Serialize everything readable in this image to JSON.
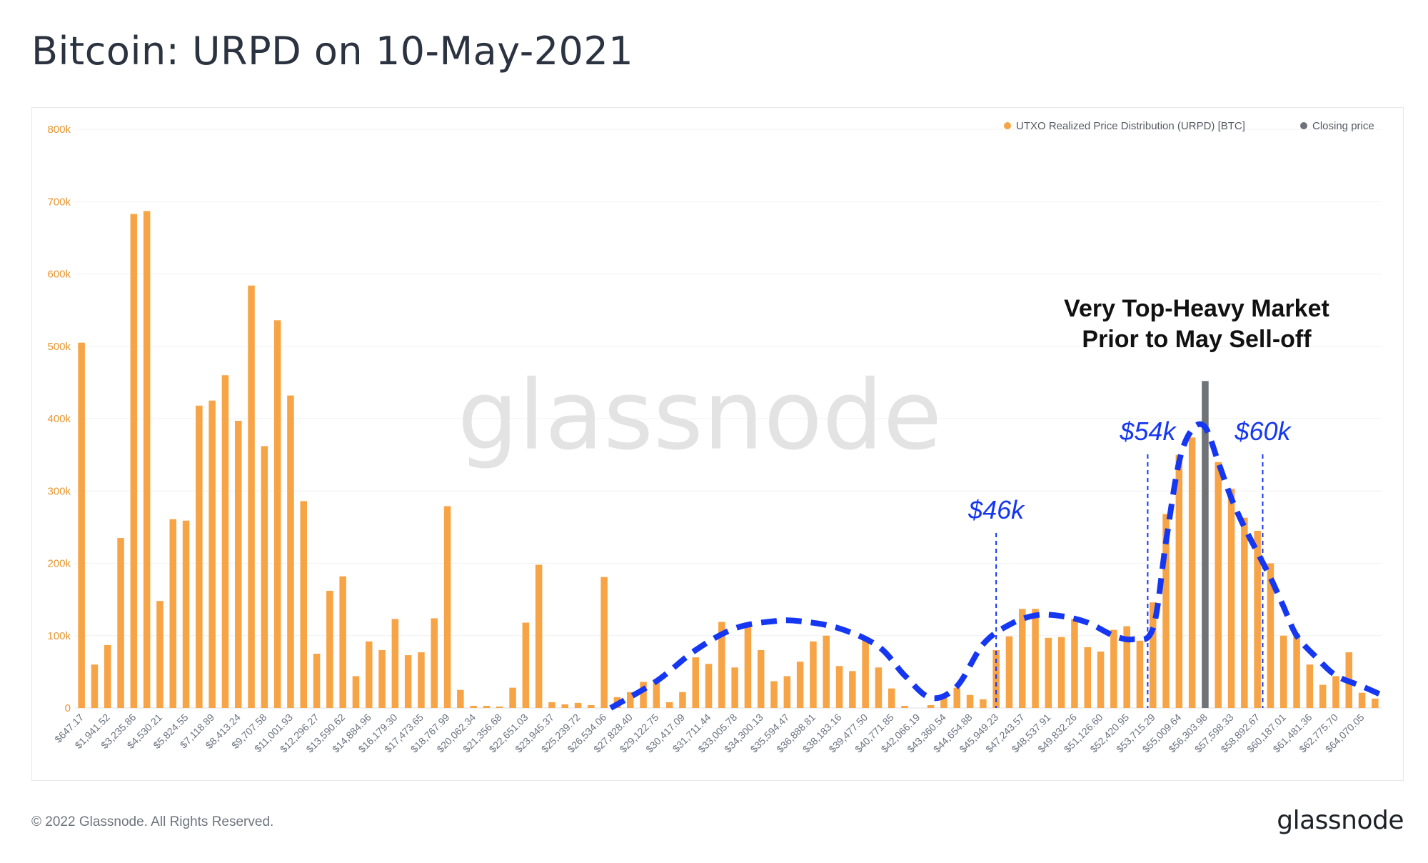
{
  "title": "Bitcoin: URPD on 10-May-2021",
  "footer": {
    "copyright": "© 2022 Glassnode. All Rights Reserved.",
    "logo": "glassnode"
  },
  "watermark": "glassnode",
  "colors": {
    "bar": "#f7a446",
    "closing": "#6f7377",
    "curve": "#1537f2",
    "axis_text": "#e6952f",
    "tick_text": "#6b7280"
  },
  "chart_data": {
    "type": "bar",
    "title": "Bitcoin: URPD on 10-May-2021",
    "ylim": [
      0,
      800000
    ],
    "yticks": [
      "0",
      "100k",
      "200k",
      "300k",
      "400k",
      "500k",
      "600k",
      "700k",
      "800k"
    ],
    "legend": [
      {
        "name": "UTXO Realized Price Distribution (URPD) [BTC]",
        "color": "#f7a446"
      },
      {
        "name": "Closing price",
        "color": "#6f7377"
      }
    ],
    "xtick_labels": [
      "$647.17",
      "$1,941.52",
      "$3,235.86",
      "$4,530.21",
      "$5,824.55",
      "$7,118.89",
      "$8,413.24",
      "$9,707.58",
      "$11,001.93",
      "$12,296.27",
      "$13,590.62",
      "$14,884.96",
      "$16,179.30",
      "$17,473.65",
      "$18,767.99",
      "$20,062.34",
      "$21,356.68",
      "$22,651.03",
      "$23,945.37",
      "$25,239.72",
      "$26,534.06",
      "$27,828.40",
      "$29,122.75",
      "$30,417.09",
      "$31,711.44",
      "$33,005.78",
      "$34,300.13",
      "$35,594.47",
      "$36,888.81",
      "$38,183.16",
      "$39,477.50",
      "$40,771.85",
      "$42,066.19",
      "$43,360.54",
      "$44,654.88",
      "$45,949.23",
      "$47,243.57",
      "$48,537.91",
      "$49,832.26",
      "$51,126.60",
      "$52,420.95",
      "$53,715.29",
      "$55,009.64",
      "$56,303.98",
      "$57,598.33",
      "$58,892.67",
      "$60,187.01",
      "$61,481.36",
      "$62,775.70",
      "$64,070.05"
    ],
    "closing_bar_index": 86,
    "values": [
      505000,
      60000,
      87000,
      235000,
      683000,
      687000,
      148000,
      261000,
      259000,
      418000,
      425000,
      460000,
      397000,
      584000,
      362000,
      536000,
      432000,
      286000,
      75000,
      162000,
      182000,
      44000,
      92000,
      80000,
      123000,
      73000,
      77000,
      124000,
      279000,
      25000,
      3000,
      3000,
      2000,
      28000,
      118000,
      198000,
      8000,
      5000,
      7000,
      4000,
      181000,
      15000,
      22000,
      36000,
      40000,
      8000,
      22000,
      70000,
      61000,
      119000,
      56000,
      118000,
      80000,
      37000,
      44000,
      64000,
      92000,
      100000,
      58000,
      51000,
      95000,
      56000,
      27000,
      3000,
      0,
      4000,
      15000,
      28000,
      18000,
      12000,
      80000,
      99000,
      137000,
      137000,
      97000,
      98000,
      123000,
      84000,
      78000,
      108000,
      113000,
      93000,
      146000,
      268000,
      350000,
      374000,
      452000,
      340000,
      303000,
      263000,
      245000,
      200000,
      100000,
      103000,
      60000,
      32000,
      44000,
      77000,
      21000,
      13000
    ]
  },
  "annotations": {
    "headline_line1": "Very Top-Heavy Market",
    "headline_line2": "Prior to May Sell-off",
    "markers": [
      {
        "label": "$46k",
        "bar_index": 70
      },
      {
        "label": "$54k",
        "bar_index": 81.6
      },
      {
        "label": "$60k",
        "bar_index": 90.4
      }
    ],
    "curve": [
      [
        40.5,
        0
      ],
      [
        44,
        37000
      ],
      [
        47,
        80000
      ],
      [
        50,
        110000
      ],
      [
        53,
        120000
      ],
      [
        55,
        120000
      ],
      [
        58,
        110000
      ],
      [
        61,
        85000
      ],
      [
        63,
        45000
      ],
      [
        65,
        14000
      ],
      [
        67,
        30000
      ],
      [
        69,
        88000
      ],
      [
        71,
        115000
      ],
      [
        73,
        128000
      ],
      [
        75,
        127000
      ],
      [
        77,
        118000
      ],
      [
        79,
        100000
      ],
      [
        80.5,
        95000
      ],
      [
        82,
        110000
      ],
      [
        83,
        230000
      ],
      [
        84,
        340000
      ],
      [
        85,
        385000
      ],
      [
        86,
        388000
      ],
      [
        87,
        340000
      ],
      [
        88,
        290000
      ],
      [
        89,
        250000
      ],
      [
        90,
        215000
      ],
      [
        91,
        180000
      ],
      [
        92,
        140000
      ],
      [
        93,
        100000
      ],
      [
        94.5,
        70000
      ],
      [
        96,
        45000
      ],
      [
        98,
        30000
      ],
      [
        99.5,
        18000
      ]
    ]
  }
}
